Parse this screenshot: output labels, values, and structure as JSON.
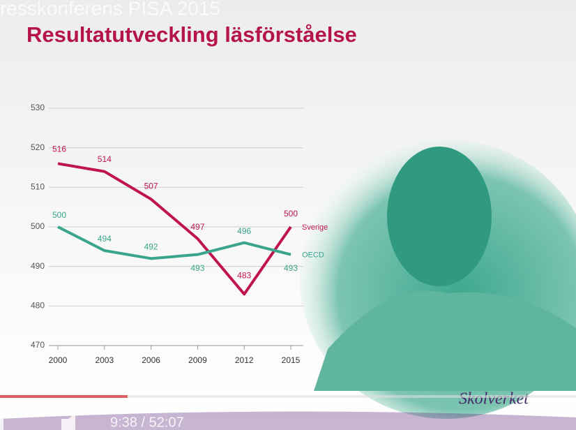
{
  "video": {
    "overlay_title": "resskonferens PISA 2015",
    "time": "9:38 / 52:07"
  },
  "logo": "Skolverket",
  "chart_data": {
    "type": "line",
    "title": "Resultatutveckling läsförståelse",
    "categories": [
      "2000",
      "2003",
      "2006",
      "2009",
      "2012",
      "2015"
    ],
    "series": [
      {
        "name": "Sverige",
        "color": "#c0144f",
        "values": [
          516,
          514,
          507,
          497,
          483,
          500
        ]
      },
      {
        "name": "OECD",
        "color": "#3aa58a",
        "values": [
          500,
          494,
          492,
          493,
          496,
          493
        ]
      }
    ],
    "ylim": [
      470,
      530
    ],
    "yticks": [
      470,
      480,
      490,
      500,
      510,
      520,
      530
    ],
    "grid": true
  }
}
